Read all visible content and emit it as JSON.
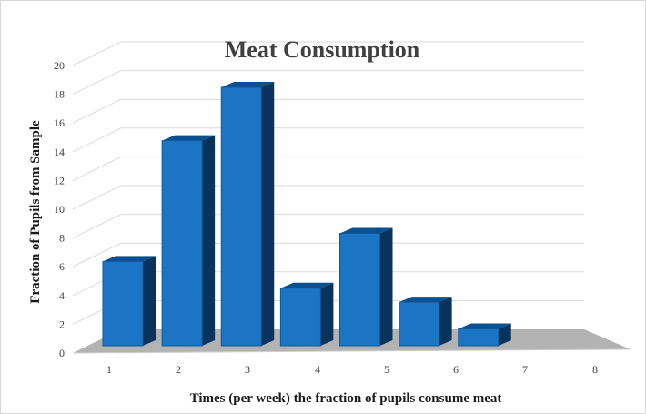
{
  "chart_data": {
    "type": "bar",
    "title": "Meat Consumption",
    "xlabel": "Times (per week) the fraction of pupils consume meat",
    "ylabel": "Fraction of Pupils from Sample",
    "categories": [
      "1",
      "2",
      "3",
      "4",
      "5",
      "6",
      "7",
      "8"
    ],
    "values": [
      6,
      14.6,
      18.4,
      4.1,
      8,
      3.1,
      1.2,
      null
    ],
    "y_ticks": [
      "0",
      "2",
      "4",
      "6",
      "8",
      "10",
      "12",
      "14",
      "16",
      "18",
      "20"
    ],
    "ylim": [
      0,
      20
    ],
    "grid": true,
    "legend": "none",
    "three_d": true,
    "colors": {
      "bar_front": "#1c74c4",
      "bar_top": "#0a4f8f",
      "bar_side": "#08335c",
      "floor": "#b3b3b3",
      "grid": "#d9d9d9"
    }
  }
}
